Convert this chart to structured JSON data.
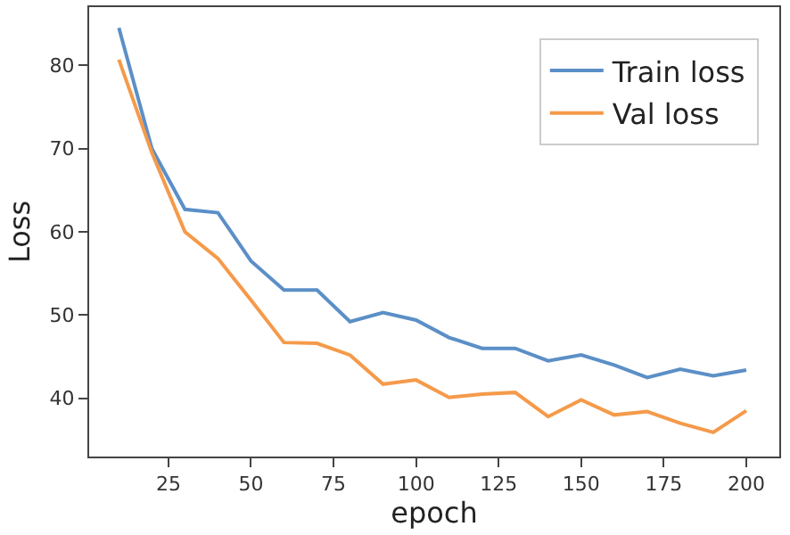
{
  "chart_data": {
    "type": "line",
    "xlabel": "epoch",
    "ylabel": "Loss",
    "x": [
      10,
      20,
      30,
      40,
      50,
      60,
      70,
      80,
      90,
      100,
      110,
      120,
      130,
      140,
      150,
      160,
      170,
      180,
      190,
      200
    ],
    "series": [
      {
        "name": "Train loss",
        "color": "#5b8fc7",
        "values": [
          84.5,
          70,
          62.7,
          62.3,
          56.5,
          53,
          53,
          49.2,
          50.3,
          49.4,
          47.3,
          46,
          46,
          44.5,
          45.2,
          44,
          42.5,
          43.5,
          42.7,
          43.4
        ]
      },
      {
        "name": "Val loss",
        "color": "#f59a4a",
        "values": [
          80.7,
          69.5,
          60,
          56.8,
          51.8,
          46.7,
          46.6,
          45.2,
          41.7,
          42.2,
          40.1,
          40.5,
          40.7,
          37.8,
          39.8,
          38,
          38.4,
          37,
          35.9,
          38.5
        ]
      }
    ],
    "xlim": [
      1,
      210
    ],
    "xticks": [
      25,
      50,
      75,
      100,
      125,
      150,
      175,
      200
    ],
    "ylim": [
      33,
      87
    ],
    "yticks": [
      40,
      50,
      60,
      70,
      80
    ],
    "legend": "top right",
    "marker": "none",
    "line_style": "solid"
  }
}
